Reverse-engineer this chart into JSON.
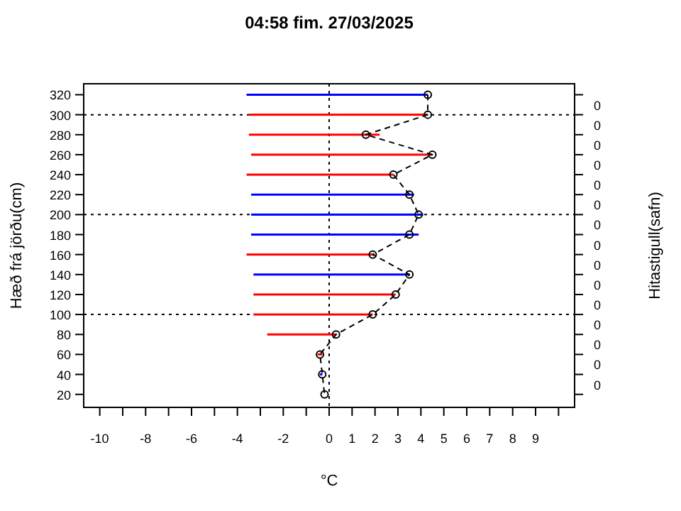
{
  "chart_data": {
    "type": "bar",
    "orientation": "horizontal",
    "title": "04:58   fim.  27/03/2025",
    "xlabel": "°C",
    "ylabel": "Hæð frá jörðu(cm)",
    "y2label": "Hitastigull(safn)",
    "x": [
      320,
      300,
      280,
      260,
      240,
      220,
      200,
      180,
      160,
      140,
      120,
      100,
      80,
      60,
      40,
      20
    ],
    "series": [
      {
        "colors": [
          "#0000ff",
          "#ff0000",
          "#ff0000",
          "#ff0000",
          "#ff0000",
          "#0000ff",
          "#0000ff",
          "#0000ff",
          "#ff0000",
          "#0000ff",
          "#ff0000",
          "#ff0000",
          "#ff0000",
          "#ff0000",
          "#0000ff",
          null
        ],
        "base": [
          -3.6,
          -3.5,
          -3.5,
          -3.4,
          -3.6,
          -3.4,
          -3.4,
          -3.4,
          -3.6,
          -3.3,
          -3.3,
          -3.3,
          -2.7,
          -0.5,
          -0.4,
          null
        ],
        "values": [
          7.9,
          7.8,
          5.7,
          7.9,
          6.4,
          7.1,
          7.5,
          7.3,
          5.5,
          6.8,
          6.2,
          5.2,
          3.0,
          0.2,
          0.1,
          null
        ]
      },
      {
        "type": "line",
        "color": "#000000",
        "marker": "circle",
        "line_style": "dashed",
        "values": [
          4.3,
          4.3,
          1.6,
          4.5,
          2.8,
          3.5,
          3.9,
          3.5,
          1.9,
          3.5,
          2.9,
          1.9,
          0.3,
          -0.4,
          -0.3,
          -0.2
        ]
      }
    ],
    "xlim": [
      -10.7,
      10.7
    ],
    "xticks": [
      -10,
      {
        "value": -9,
        "label": null
      },
      -8,
      {
        "value": -7,
        "label": null
      },
      -6,
      {
        "value": -5,
        "label": null
      },
      -4,
      {
        "value": -3,
        "label": null
      },
      -2,
      {
        "value": -1,
        "label": null
      },
      0,
      1,
      2,
      3,
      4,
      5,
      6,
      7,
      8,
      9,
      {
        "value": 10,
        "label": null
      }
    ],
    "ylim": [
      7,
      331
    ],
    "yticks": [
      20,
      40,
      60,
      80,
      100,
      120,
      140,
      160,
      180,
      200,
      220,
      240,
      260,
      280,
      300,
      320
    ],
    "y2_categories": [
      "0",
      "0",
      "0",
      "0",
      "0",
      "0",
      "0",
      "0",
      "0",
      "0",
      "0",
      "0",
      "0",
      "0",
      "0"
    ],
    "ref_lines": [
      {
        "axis": "x",
        "value": 0,
        "line_style": "dotted",
        "color": "#000000"
      },
      {
        "axis": "y",
        "value": 100,
        "line_style": "dotted",
        "color": "#000000"
      },
      {
        "axis": "y",
        "value": 200,
        "line_style": "dotted",
        "color": "#000000"
      },
      {
        "axis": "y",
        "value": 300,
        "line_style": "dotted",
        "color": "#000000"
      }
    ],
    "grid": false
  }
}
